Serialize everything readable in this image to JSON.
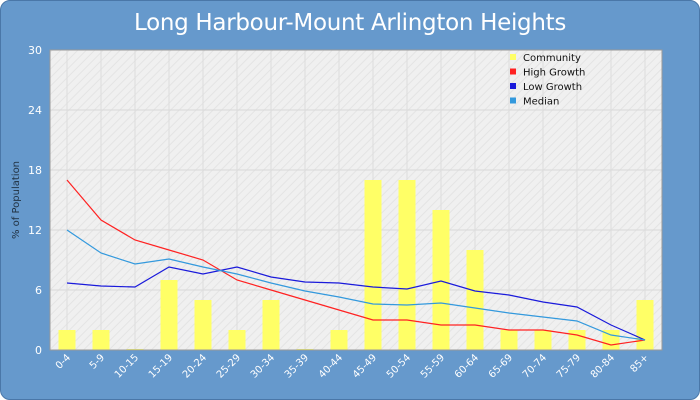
{
  "chart_data": {
    "type": "bar",
    "title": "Long Harbour-Mount Arlington Heights",
    "ylabel": "% of Population",
    "xlabel": "",
    "ylim": [
      0,
      30
    ],
    "yticks": [
      0,
      6,
      12,
      18,
      24,
      30
    ],
    "grid": true,
    "legend_position": "top-right",
    "categories": [
      "0-4",
      "5-9",
      "10-15",
      "15-19",
      "20-24",
      "25-29",
      "30-34",
      "35-39",
      "40-44",
      "45-49",
      "50-54",
      "55-59",
      "60-64",
      "65-69",
      "70-74",
      "75-79",
      "80-84",
      "85+"
    ],
    "series": [
      {
        "name": "Community",
        "kind": "bar",
        "color": "#ffff66",
        "values": [
          2,
          2,
          0.1,
          7,
          5,
          2,
          5,
          0.1,
          2,
          17,
          17,
          14,
          10,
          2,
          2,
          2,
          2,
          5
        ]
      },
      {
        "name": "High Growth",
        "kind": "line",
        "color": "#ff2222",
        "values": [
          17,
          13,
          11,
          10,
          9,
          7,
          6,
          5,
          4,
          3,
          3,
          2.5,
          2.5,
          2,
          2,
          1.5,
          0.5,
          1
        ]
      },
      {
        "name": "Low Growth",
        "kind": "line",
        "color": "#1a1adb",
        "values": [
          6.7,
          6.4,
          6.3,
          8.3,
          7.6,
          8.3,
          7.3,
          6.8,
          6.7,
          6.3,
          6.1,
          6.9,
          5.9,
          5.5,
          4.8,
          4.3,
          2.5,
          1
        ]
      },
      {
        "name": "Median",
        "kind": "line",
        "color": "#3399dd",
        "values": [
          12,
          9.7,
          8.6,
          9.1,
          8.3,
          7.6,
          6.7,
          5.9,
          5.3,
          4.6,
          4.5,
          4.7,
          4.2,
          3.7,
          3.3,
          2.9,
          1.5,
          1
        ]
      }
    ]
  }
}
